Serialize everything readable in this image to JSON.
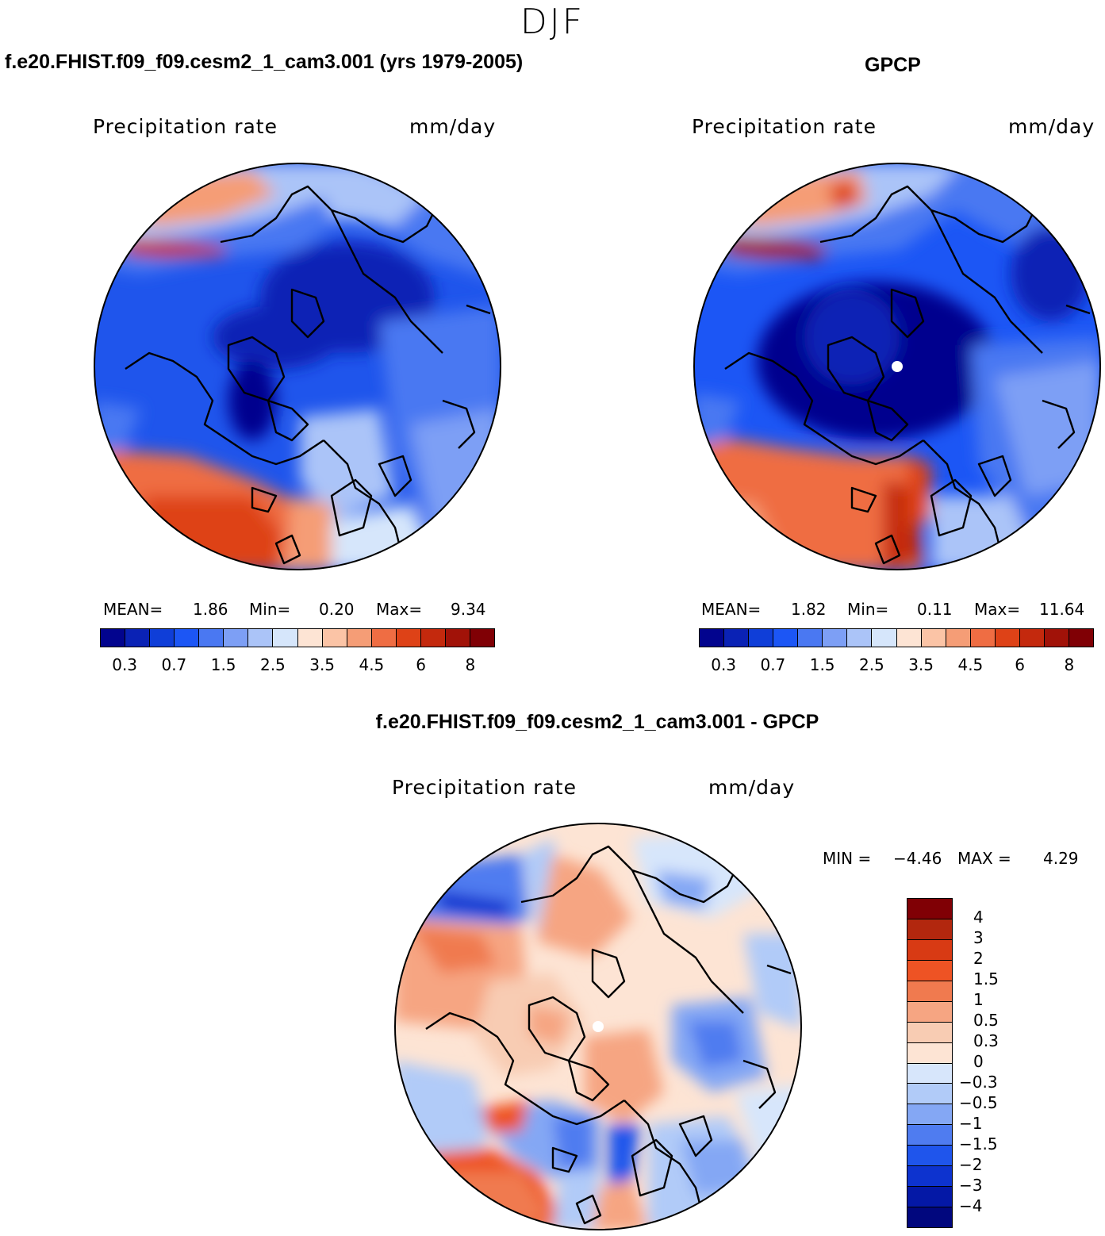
{
  "season": "DJF",
  "panels": [
    {
      "title": "f.e20.FHIST.f09_f09.cesm2_1_cam3.001 (yrs 1979-2005)",
      "variable": "Precipitation rate",
      "units": "mm/day",
      "stats": {
        "mean_label": "MEAN=",
        "mean": "1.86",
        "min_label": "Min=",
        "min": "0.20",
        "max_label": "Max=",
        "max": "9.34"
      }
    },
    {
      "title": "GPCP",
      "variable": "Precipitation rate",
      "units": "mm/day",
      "stats": {
        "mean_label": "MEAN=",
        "mean": "1.82",
        "min_label": "Min=",
        "min": "0.11",
        "max_label": "Max=",
        "max": "11.64"
      }
    },
    {
      "title": "f.e20.FHIST.f09_f09.cesm2_1_cam3.001 - GPCP",
      "variable": "Precipitation rate",
      "units": "mm/day",
      "stats": {
        "min_label": "MIN =",
        "min": "−4.46",
        "max_label": "MAX =",
        "max": "4.29"
      }
    }
  ],
  "colorbar_abs": {
    "colors": [
      "#02048e",
      "#0a22b5",
      "#0f3ed8",
      "#1c56f5",
      "#4a78f2",
      "#7d9ff5",
      "#abc4f8",
      "#d6e6fb",
      "#fde4d4",
      "#fbc4a6",
      "#f59d76",
      "#ef6d43",
      "#de4217",
      "#c4290d",
      "#a11208",
      "#800005"
    ],
    "tick_labels": [
      "0.3",
      "0.7",
      "1.5",
      "2.5",
      "3.5",
      "4.5",
      "6",
      "8"
    ]
  },
  "colorbar_diff": {
    "colors": [
      "#800005",
      "#b2270e",
      "#d83a14",
      "#ee5324",
      "#f07a4f",
      "#f6a582",
      "#f8ccb3",
      "#fde4d4",
      "#d7e6fb",
      "#b1cbf8",
      "#84a7f4",
      "#4f7cf0",
      "#1f55ec",
      "#0d33cf",
      "#0418a6",
      "#01077e"
    ],
    "tick_labels": [
      "4",
      "3",
      "2",
      "1.5",
      "1",
      "0.5",
      "0.3",
      "0",
      "−0.3",
      "−0.5",
      "−1",
      "−1.5",
      "−2",
      "−3",
      "−4"
    ]
  },
  "map_legend": {
    "pole_marker": "white dot at North Pole (missing data)",
    "projection": "north polar stereographic",
    "coastlines": "black"
  }
}
